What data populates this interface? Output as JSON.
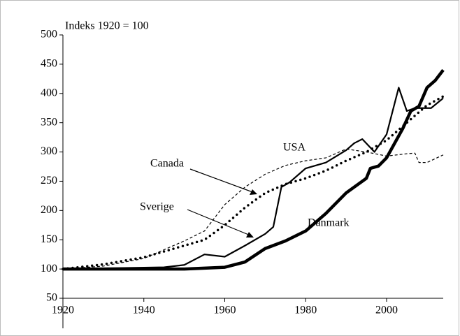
{
  "chart_data": {
    "type": "line",
    "subtitle": "Indeks 1920 = 100",
    "xlim": [
      1920,
      2014
    ],
    "xticks": [
      1920,
      1940,
      1960,
      1980,
      2000
    ],
    "ylim": [
      50,
      500
    ],
    "yticks": [
      50,
      100,
      150,
      200,
      250,
      300,
      350,
      400,
      450,
      500
    ],
    "series": [
      {
        "name": "Danmark",
        "color": "#000000",
        "style": "thick",
        "x": [
          1920,
          1950,
          1960,
          1965,
          1970,
          1975,
          1980,
          1985,
          1990,
          1995,
          1996,
          1998,
          2000,
          2002,
          2004,
          2006,
          2008,
          2010,
          2012,
          2014
        ],
        "values": [
          100,
          100,
          103,
          112,
          135,
          148,
          165,
          195,
          230,
          255,
          272,
          276,
          290,
          315,
          340,
          370,
          378,
          410,
          422,
          440
        ]
      },
      {
        "name": "Sverige",
        "color": "#000000",
        "style": "solid",
        "x": [
          1920,
          1945,
          1950,
          1955,
          1960,
          1965,
          1970,
          1972,
          1974,
          1976,
          1980,
          1985,
          1990,
          1992,
          1994,
          1997,
          2000,
          2003,
          2005,
          2007,
          2011,
          2014
        ],
        "values": [
          100,
          103,
          107,
          125,
          121,
          140,
          160,
          172,
          240,
          248,
          272,
          282,
          303,
          315,
          322,
          300,
          330,
          410,
          370,
          375,
          375,
          392
        ]
      },
      {
        "name": "Canada",
        "color": "#000000",
        "style": "dotted",
        "x": [
          1920,
          1930,
          1940,
          1950,
          1955,
          1960,
          1965,
          1970,
          1975,
          1980,
          1985,
          1990,
          1995,
          2000,
          2005,
          2010,
          2014
        ],
        "values": [
          100,
          108,
          120,
          140,
          150,
          175,
          205,
          230,
          245,
          255,
          268,
          285,
          300,
          320,
          350,
          380,
          395
        ]
      },
      {
        "name": "USA",
        "color": "#000000",
        "style": "dashed",
        "x": [
          1920,
          1930,
          1940,
          1950,
          1955,
          1960,
          1965,
          1970,
          1975,
          1980,
          1985,
          1990,
          1995,
          2000,
          2005,
          2007,
          2008,
          2010,
          2014
        ],
        "values": [
          100,
          105,
          118,
          148,
          165,
          210,
          240,
          262,
          277,
          285,
          290,
          305,
          300,
          293,
          297,
          298,
          282,
          282,
          295
        ]
      }
    ]
  }
}
